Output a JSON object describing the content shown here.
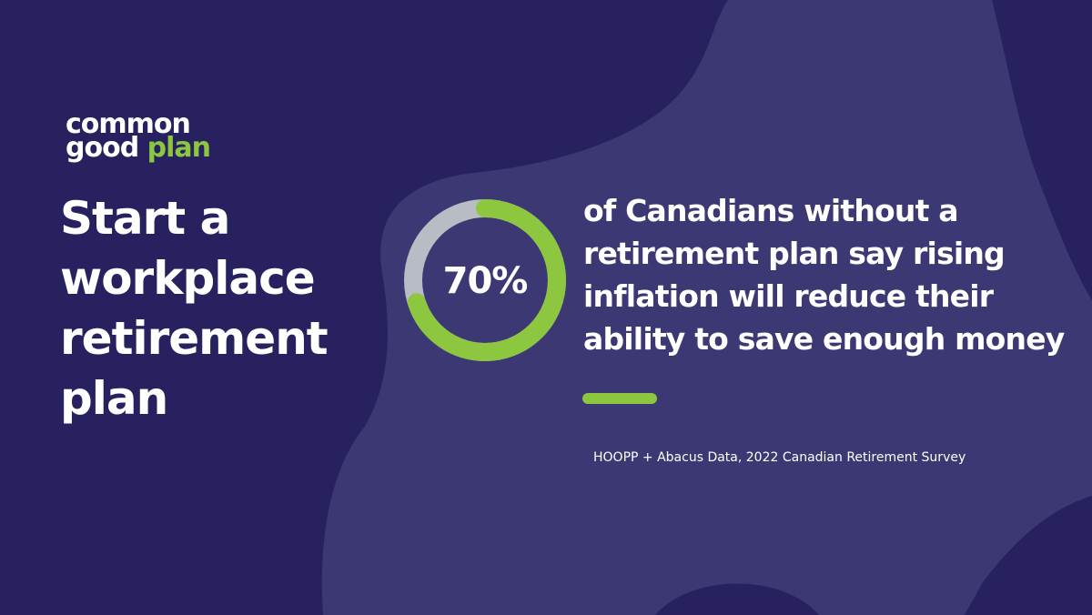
{
  "logo": {
    "line1": "common",
    "line2": "good",
    "line2_accent": "plan"
  },
  "headline": [
    "Start a",
    "workplace",
    "retirement",
    "plan"
  ],
  "chart_data": {
    "type": "donut",
    "values": [
      70
    ],
    "value_labels": [
      "70%"
    ],
    "color": "#8dc63f",
    "track_color": "#b8bcc4"
  },
  "statement": [
    "of Canadians without a",
    "retirement plan say rising",
    "inflation will reduce their",
    "ability to save enough money"
  ],
  "source": "HOOPP + Abacus Data, 2022 Canadian Retirement Survey"
}
